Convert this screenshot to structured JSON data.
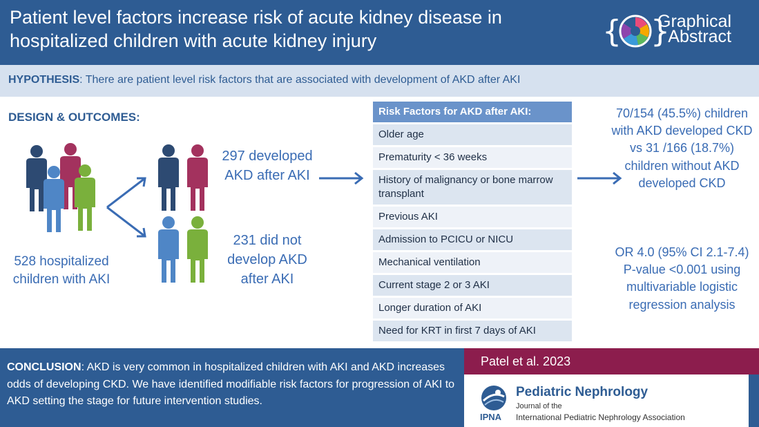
{
  "header": {
    "title": "Patient level factors increase risk of acute kidney disease in hospitalized children with acute kidney injury",
    "badge_line1": "Graphical",
    "badge_line2": "Abstract"
  },
  "hypothesis": {
    "label": "HYPOTHESIS",
    "text": ": There are patient level risk factors that are associated with development of AKD after AKI"
  },
  "design": {
    "label": "DESIGN & OUTCOMES",
    "label_suffix": ":",
    "total": "528 hospitalized children with AKI",
    "developed": "297 developed AKD after AKI",
    "not_developed": "231 did not develop AKD after AKI"
  },
  "risk_factors": {
    "header": "Risk Factors for AKD after AKI:",
    "items": [
      "Older age",
      "Prematurity < 36 weeks",
      "History of malignancy or bone marrow transplant",
      "Previous AKI",
      "Admission to PCICU or NICU",
      "Mechanical ventilation",
      "Current stage 2 or 3 AKI",
      "Longer duration of AKI",
      "Need for KRT in first 7 days of AKI"
    ]
  },
  "results": {
    "comparison": "70/154 (45.5%) children with AKD developed CKD vs 31 /166 (18.7%) children without AKD developed CKD",
    "stats": "OR 4.0 (95% CI 2.1-7.4) P-value <0.001 using multivariable logistic regression analysis"
  },
  "conclusion": {
    "label": "CONCLUSION",
    "text": ": AKD is very common in hospitalized children with AKI and AKD increases odds of developing CKD. We have identified modifiable risk factors for progression of AKI to AKD setting the stage for future intervention studies."
  },
  "reference": {
    "citation": "Patel et al. 2023",
    "journal": "Pediatric Nephrology",
    "journal_of": "Journal of the",
    "association": "International Pediatric Nephrology Association",
    "ipna": "IPNA"
  },
  "colors": {
    "navy": "#2e5c93",
    "light_blue": "#d6e1ef",
    "text_blue": "#3a6cb4",
    "maroon": "#8c1d4d",
    "person_navy": "#2d4a72",
    "person_magenta": "#a3325e",
    "person_blue": "#4f86c6",
    "person_green": "#7ab03c"
  }
}
